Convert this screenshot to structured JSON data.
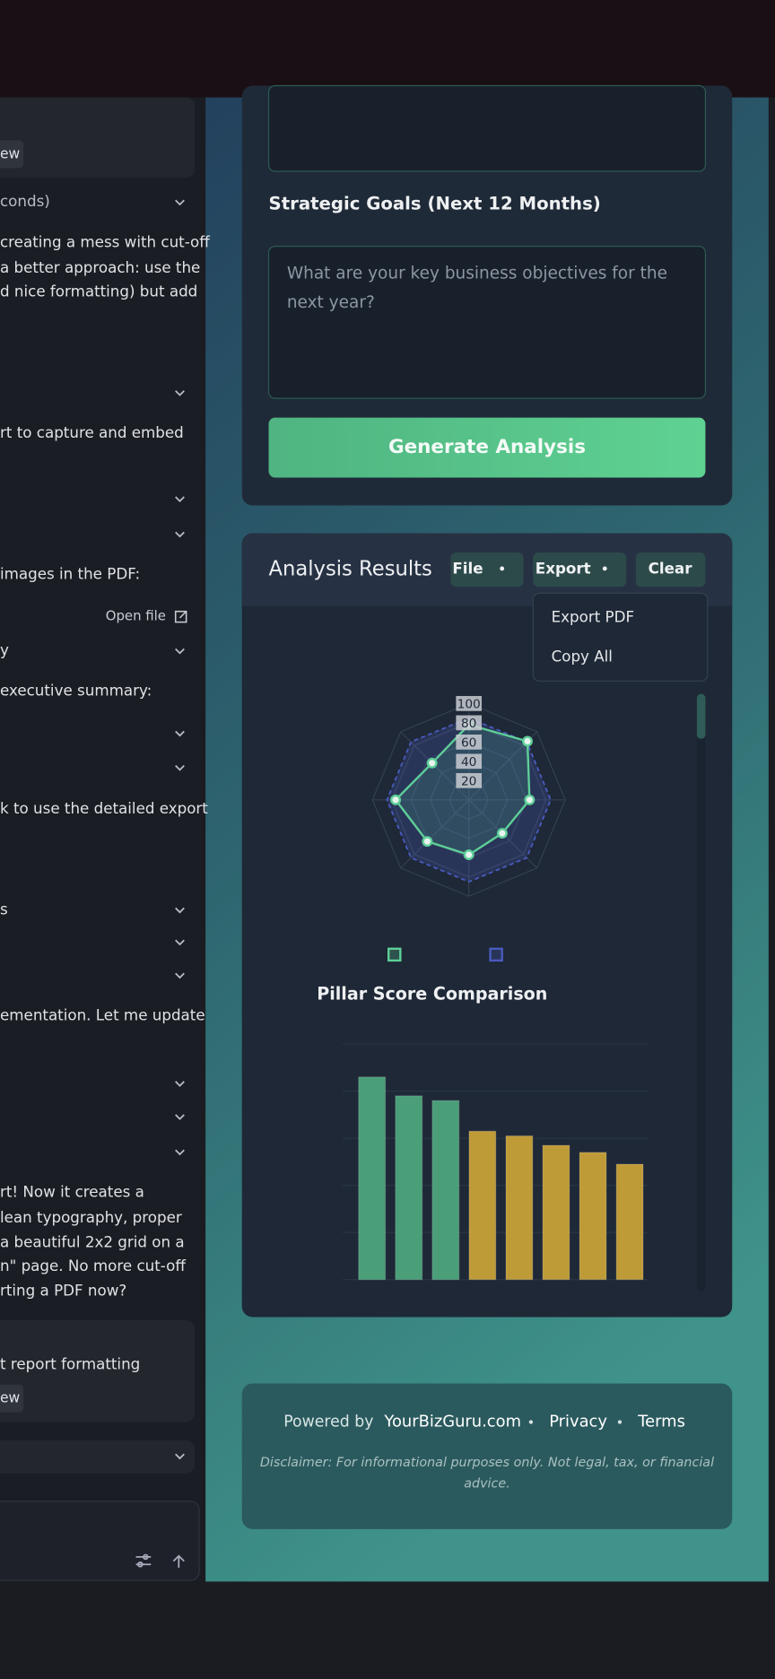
{
  "chat": {
    "lines": [
      "conds)",
      "creating a mess with cut-off",
      "a better approach: use the",
      "d nice formatting) but add",
      "rt to capture and embed",
      "images in the PDF:",
      "y",
      "executive summary:",
      "k to use the detailed export",
      "s",
      "ementation. Let me update",
      "rt! Now it creates a",
      "lean typography, proper",
      "a beautiful 2x2 grid on a",
      "n\" page. No more cut-off",
      "rting a PDF now?",
      "t report formatting"
    ],
    "open_file": "Open file",
    "view_buttons": [
      "ew",
      "ew"
    ]
  },
  "form": {
    "label": "Strategic Goals (Next 12 Months)",
    "placeholder": [
      "What are your key business objectives for the",
      "next year?"
    ],
    "button": "Generate Analysis"
  },
  "results": {
    "title": "Analysis Results",
    "buttons": [
      "File",
      "Export",
      "Clear"
    ],
    "menu": [
      "Export PDF",
      "Copy All"
    ]
  },
  "footer": {
    "powered_by": "Powered by",
    "site": "YourBizGuru.com",
    "links": [
      "Privacy",
      "Terms"
    ],
    "disclaimer": [
      "Disclaimer: For informational purposes only. Not legal, tax, or financial",
      "advice."
    ]
  },
  "chart_data": [
    {
      "type": "radar",
      "categories": [
        null,
        null,
        null,
        null,
        null,
        null,
        null,
        null
      ],
      "ylim": [
        0,
        100
      ],
      "yticks": [
        20,
        40,
        60,
        80,
        100
      ],
      "series": [
        {
          "color": "#5ecf98",
          "values": [
            78,
            86,
            63,
            49,
            57,
            61,
            76,
            54
          ]
        },
        {
          "color": "#4a5bc0",
          "values": [
            85,
            85,
            85,
            85,
            85,
            85,
            85,
            85
          ]
        }
      ]
    },
    {
      "type": "bar",
      "title": "Pillar Score Comparison",
      "categories": [
        null,
        null,
        null,
        null,
        null,
        null,
        null,
        null
      ],
      "values": [
        86,
        78,
        76,
        63,
        61,
        57,
        54,
        49
      ],
      "colors": [
        "#4a9e78",
        "#4a9e78",
        "#4a9e78",
        "#bf9b38",
        "#bf9b38",
        "#bf9b38",
        "#bf9b38",
        "#bf9b38"
      ],
      "ylim": [
        0,
        100
      ],
      "yticks": [
        0,
        20,
        40,
        60,
        80,
        100
      ],
      "grid": true
    }
  ]
}
